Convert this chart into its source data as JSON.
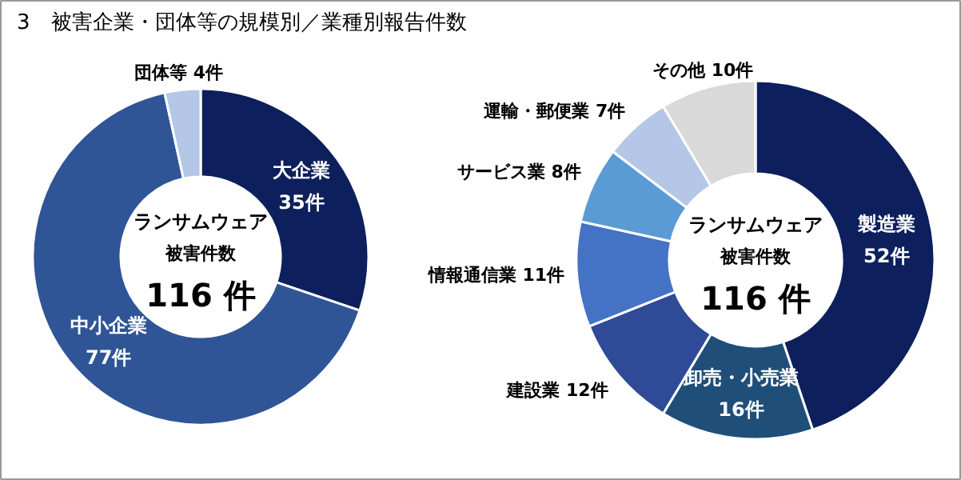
{
  "chart_data": [
    {
      "type": "donut",
      "title": "3　被害企業・団体等の規模別／業種別報告件数",
      "categories": [
        "大企業",
        "中小企業",
        "団体等"
      ],
      "values": [
        35,
        77,
        4
      ],
      "colors": [
        "#0d1f5c",
        "#2f5597",
        "#b4c7e7"
      ],
      "value_labels": [
        "35件",
        "77件",
        "4件"
      ],
      "annotations": [
        "ランサムウェア",
        "被害件数",
        "116 件"
      ],
      "legend": false
    },
    {
      "type": "donut",
      "categories": [
        "製造業",
        "卸売・小売業",
        "建設業",
        "情報通信業",
        "サービス業",
        "運輸・郵便業",
        "その他"
      ],
      "values": [
        52,
        16,
        12,
        11,
        8,
        7,
        10
      ],
      "colors": [
        "#0d1f5c",
        "#1f4e79",
        "#2f4a96",
        "#4472c4",
        "#5b9bd5",
        "#b4c7e7",
        "#d9d9d9"
      ],
      "value_labels": [
        "52件",
        "16件",
        "12件",
        "11件",
        "8件",
        "7件",
        "10件"
      ],
      "annotations": [
        "ランサムウェア",
        "被害件数",
        "116 件"
      ],
      "legend": false
    }
  ]
}
